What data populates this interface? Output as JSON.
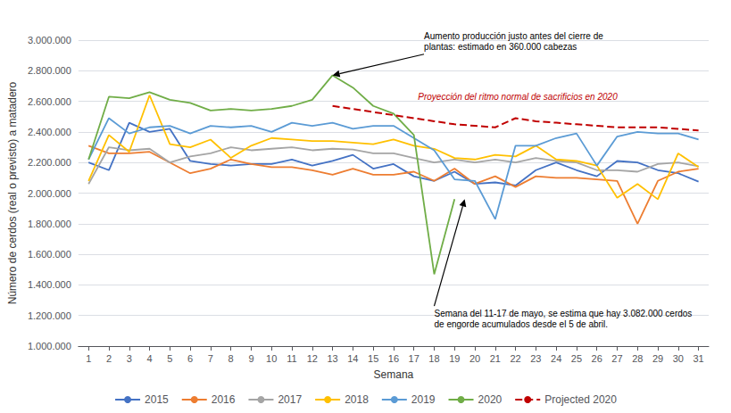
{
  "chart_data": {
    "type": "line",
    "xlabel": "Semana",
    "ylabel": "Número de cerdos (real o previsto) a matadero",
    "x": [
      1,
      2,
      3,
      4,
      5,
      6,
      7,
      8,
      9,
      10,
      11,
      12,
      13,
      14,
      15,
      16,
      17,
      18,
      19,
      20,
      21,
      22,
      23,
      24,
      25,
      26,
      27,
      28,
      29,
      30,
      31
    ],
    "series": [
      {
        "name": "2015",
        "color": "#4472C4",
        "values": [
          2200000,
          2150000,
          2460000,
          2400000,
          2420000,
          2210000,
          2190000,
          2180000,
          2190000,
          2190000,
          2220000,
          2180000,
          2210000,
          2250000,
          2160000,
          2190000,
          2110000,
          2080000,
          2140000,
          2060000,
          2070000,
          2050000,
          2150000,
          2200000,
          2150000,
          2110000,
          2210000,
          2200000,
          2150000,
          2130000,
          2075000
        ]
      },
      {
        "name": "2016",
        "color": "#ED7D31",
        "values": [
          2310000,
          2260000,
          2260000,
          2270000,
          2200000,
          2130000,
          2160000,
          2220000,
          2190000,
          2170000,
          2170000,
          2150000,
          2120000,
          2160000,
          2120000,
          2120000,
          2140000,
          2080000,
          2160000,
          2060000,
          2110000,
          2040000,
          2110000,
          2100000,
          2100000,
          2090000,
          2080000,
          1800000,
          2080000,
          2140000,
          2160000
        ]
      },
      {
        "name": "2017",
        "color": "#A5A5A5",
        "values": [
          2060000,
          2300000,
          2280000,
          2290000,
          2200000,
          2240000,
          2260000,
          2300000,
          2280000,
          2290000,
          2300000,
          2280000,
          2290000,
          2285000,
          2260000,
          2260000,
          2230000,
          2200000,
          2220000,
          2200000,
          2220000,
          2200000,
          2230000,
          2210000,
          2200000,
          2150000,
          2150000,
          2140000,
          2190000,
          2200000,
          2175000
        ]
      },
      {
        "name": "2018",
        "color": "#FFC000",
        "values": [
          2080000,
          2380000,
          2270000,
          2640000,
          2320000,
          2300000,
          2350000,
          2230000,
          2310000,
          2360000,
          2350000,
          2340000,
          2340000,
          2330000,
          2320000,
          2350000,
          2310000,
          2290000,
          2230000,
          2220000,
          2250000,
          2240000,
          2310000,
          2220000,
          2210000,
          2180000,
          1970000,
          2060000,
          1960000,
          2260000,
          2170000
        ]
      },
      {
        "name": "2019",
        "color": "#5B9BD5",
        "values": [
          2220000,
          2490000,
          2390000,
          2430000,
          2440000,
          2390000,
          2440000,
          2430000,
          2440000,
          2400000,
          2460000,
          2440000,
          2460000,
          2420000,
          2440000,
          2440000,
          2360000,
          2280000,
          2090000,
          2080000,
          1830000,
          2310000,
          2310000,
          2360000,
          2390000,
          2180000,
          2370000,
          2400000,
          2390000,
          2390000,
          2350000
        ]
      },
      {
        "name": "2020",
        "color": "#70AD47",
        "values": [
          2220000,
          2630000,
          2620000,
          2660000,
          2610000,
          2590000,
          2540000,
          2550000,
          2540000,
          2550000,
          2570000,
          2610000,
          2770000,
          2690000,
          2570000,
          2520000,
          2380000,
          1470000,
          1960000,
          null,
          null,
          null,
          null,
          null,
          null,
          null,
          null,
          null,
          null,
          null,
          null
        ]
      },
      {
        "name": "Projected 2020",
        "color": "#C00000",
        "line_style": "dashed",
        "values": [
          null,
          null,
          null,
          null,
          null,
          null,
          null,
          null,
          null,
          null,
          null,
          null,
          2570000,
          2550000,
          2530000,
          2510000,
          2490000,
          2470000,
          2450000,
          2440000,
          2430000,
          2490000,
          2470000,
          2460000,
          2450000,
          2440000,
          2430000,
          2430000,
          2430000,
          2420000,
          2410000
        ]
      }
    ],
    "xlim": [
      0.5,
      31.5
    ],
    "xticks": [
      1,
      2,
      3,
      4,
      5,
      6,
      7,
      8,
      9,
      10,
      11,
      12,
      13,
      14,
      15,
      16,
      17,
      18,
      19,
      20,
      21,
      22,
      23,
      24,
      25,
      26,
      27,
      28,
      29,
      30,
      31
    ],
    "ylim": [
      1000000,
      3000000
    ],
    "yticks": [
      {
        "value": 1000000,
        "label": "1.000.000"
      },
      {
        "value": 1200000,
        "label": "1.200.000"
      },
      {
        "value": 1400000,
        "label": "1.400.000"
      },
      {
        "value": 1600000,
        "label": "1.600.000"
      },
      {
        "value": 1800000,
        "label": "1.800.000"
      },
      {
        "value": 2000000,
        "label": "2.000.000"
      },
      {
        "value": 2200000,
        "label": "2.200.000"
      },
      {
        "value": 2400000,
        "label": "2.400.000"
      },
      {
        "value": 2600000,
        "label": "2.600.000"
      },
      {
        "value": 2800000,
        "label": "2.800.000"
      },
      {
        "value": 3000000,
        "label": "3.000.000"
      }
    ],
    "grid": true,
    "legend": "bottom",
    "annotations": [
      {
        "text": "Aumento producción justo antes del cierre de\nplantas: estimado en 360.000 cabezas",
        "xy": [
          13,
          2770000
        ],
        "xytext": [
          17.5,
          2920000
        ]
      },
      {
        "text": "Semana del 11-17 de mayo, se estima que hay 3.082.000 cerdos\nde engorde acumulados desde el 5 de abril.",
        "xy": [
          19.5,
          1960000
        ],
        "xytext": [
          18.0,
          1250000
        ]
      },
      {
        "text": "Proyección del ritmo normal de sacrificios en 2020",
        "xytext": [
          17.2,
          2595000
        ],
        "color": "#C00000"
      }
    ]
  }
}
